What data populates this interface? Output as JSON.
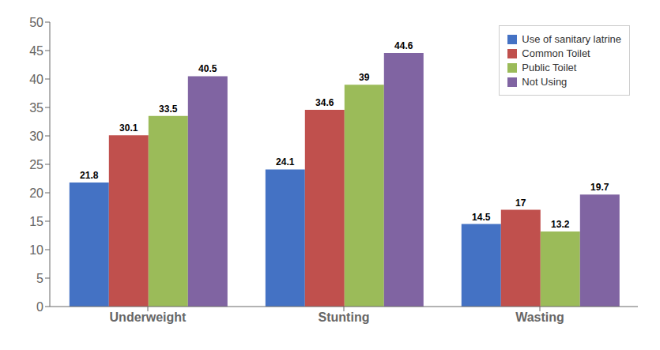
{
  "chart_data": {
    "type": "bar",
    "categories": [
      "Underweight",
      "Stunting",
      "Wasting"
    ],
    "series": [
      {
        "name": "Use of sanitary latrine",
        "color": "#4472C4",
        "values": [
          21.8,
          24.1,
          14.5
        ]
      },
      {
        "name": "Common Toilet",
        "color": "#C0504D",
        "values": [
          30.1,
          34.6,
          17.0
        ]
      },
      {
        "name": "Public Toilet",
        "color": "#9BBB59",
        "values": [
          33.5,
          39.0,
          13.2
        ]
      },
      {
        "name": "Not Using",
        "color": "#8064A2",
        "values": [
          40.5,
          44.6,
          19.7
        ]
      }
    ],
    "ylim": [
      0,
      50
    ],
    "yticks": [
      0,
      5,
      10,
      15,
      20,
      25,
      30,
      35,
      40,
      45,
      50
    ],
    "grid": false,
    "legend": "upper right",
    "data_labels": true
  }
}
